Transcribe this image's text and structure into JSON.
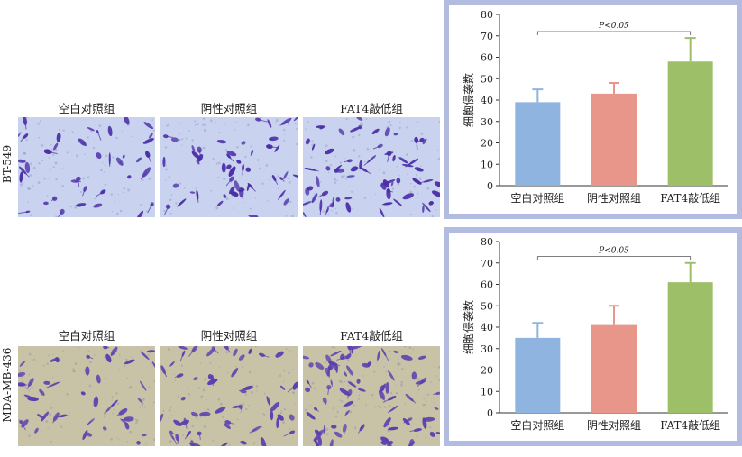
{
  "rows": [
    {
      "cell_line": "BT-549",
      "image_titles": [
        "空白对照组",
        "阴性对照组",
        "FAT4敲低组"
      ]
    },
    {
      "cell_line": "MDA-MB-436",
      "image_titles": [
        "空白对照组",
        "阴性对照组",
        "FAT4敲低组"
      ]
    }
  ],
  "colors": {
    "bar_blank": "#8fb4e0",
    "bar_negative": "#e9968a",
    "bar_knockdown": "#9dbf67",
    "panel_border": "#b2bbe0",
    "stain_row1_bg": "#c9d2ee",
    "stain_row1_cell": "#4b2fa8",
    "stain_row2_bg": "#c8c3a6",
    "stain_row2_cell": "#5b3fb0"
  },
  "chart_data": [
    {
      "type": "bar",
      "row": "BT-549",
      "categories": [
        "空白对照组",
        "阴性对照组",
        "FAT4敲低组"
      ],
      "values": [
        39,
        43,
        58
      ],
      "errors": [
        6,
        5,
        11
      ],
      "ylabel": "细胞侵袭数",
      "ylim": [
        0,
        80
      ],
      "yticks": [
        0,
        10,
        20,
        30,
        40,
        50,
        60,
        70,
        80
      ],
      "annotation": {
        "text": "P<0.05",
        "from": 0,
        "to": 2,
        "y": 72
      }
    },
    {
      "type": "bar",
      "row": "MDA-MB-436",
      "categories": [
        "空白对照组",
        "阴性对照组",
        "FAT4敲低组"
      ],
      "values": [
        35,
        41,
        61
      ],
      "errors": [
        7,
        9,
        9
      ],
      "ylabel": "细胞侵袭数",
      "ylim": [
        0,
        80
      ],
      "yticks": [
        0,
        10,
        20,
        30,
        40,
        50,
        60,
        70,
        80
      ],
      "annotation": {
        "text": "P<0.05",
        "from": 0,
        "to": 2,
        "y": 73
      }
    }
  ]
}
